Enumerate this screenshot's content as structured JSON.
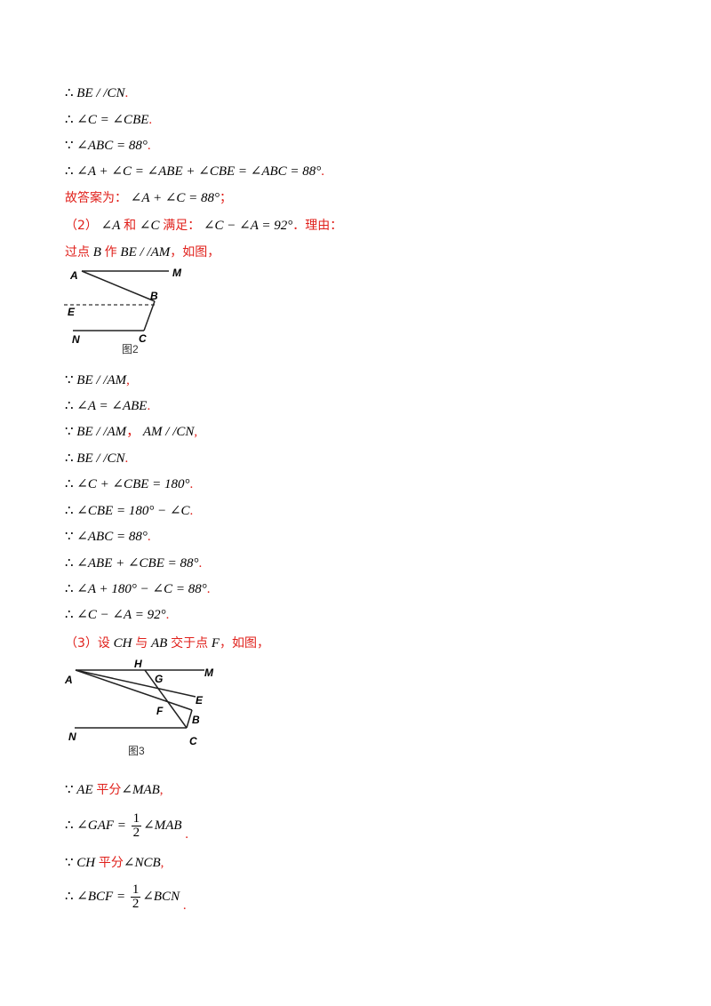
{
  "lines": {
    "l1": {
      "sym": "∴",
      "expr": "BE / /CN",
      "tail": "."
    },
    "l2": {
      "sym": "∴",
      "expr": "∠C = ∠CBE",
      "tail": "."
    },
    "l3": {
      "sym": "∵",
      "expr": "∠ABC = 88°",
      "tail": "."
    },
    "l4": {
      "sym": "∴",
      "expr": "∠A + ∠C = ∠ABE + ∠CBE = ∠ABC = 88°",
      "tail": "."
    },
    "l5": {
      "prefix": "故答案为：",
      "expr": "∠A + ∠C = 88°",
      "tail": "；"
    },
    "l6": {
      "p1": "（2）",
      "e1": "∠A",
      "p2": "和",
      "e2": "∠C",
      "p3": "满足：",
      "e3": "∠C − ∠A = 92°",
      "p4": "．理由："
    },
    "l7": {
      "p1": "过点",
      "e1": "B",
      "p2": "作",
      "e2": "BE / /AM",
      "p3": "，如图，"
    },
    "l8": {
      "sym": "∵",
      "expr": "BE / /AM",
      "tail": ","
    },
    "l9": {
      "sym": "∴",
      "expr": "∠A = ∠ABE",
      "tail": "."
    },
    "l10": {
      "sym": "∵",
      "expr": "BE / /AM",
      "mid": "，",
      "expr2": "AM / /CN",
      "tail": ","
    },
    "l11": {
      "sym": "∴",
      "expr": "BE / /CN",
      "tail": "."
    },
    "l12": {
      "sym": "∴",
      "expr": "∠C + ∠CBE = 180°",
      "tail": "."
    },
    "l13": {
      "sym": "∴",
      "expr": "∠CBE = 180° − ∠C",
      "tail": "."
    },
    "l14": {
      "sym": "∵",
      "expr": "∠ABC = 88°",
      "tail": "."
    },
    "l15": {
      "sym": "∴",
      "expr": "∠ABE + ∠CBE = 88°",
      "tail": "."
    },
    "l16": {
      "sym": "∴",
      "expr": "∠A + 180° − ∠C = 88°",
      "tail": "."
    },
    "l17": {
      "sym": "∴",
      "expr": "∠C − ∠A = 92°",
      "tail": "."
    },
    "l18": {
      "p1": "（3）设",
      "e1": "CH",
      "p2": "与",
      "e2": "AB",
      "p3": "交于点",
      "e3": "F",
      "p4": "，如图，"
    },
    "l19": {
      "sym": "∵",
      "e1": "AE",
      "p1": "平分",
      "e2": "∠MAB",
      "tail": ","
    },
    "l20": {
      "sym": "∴",
      "pre": "∠GAF =",
      "num": "1",
      "den": "2",
      "post": "∠MAB",
      "tail": "."
    },
    "l21": {
      "sym": "∵",
      "e1": "CH",
      "p1": "平分",
      "e2": "∠NCB",
      "tail": ","
    },
    "l22": {
      "sym": "∴",
      "pre": "∠BCF =",
      "num": "1",
      "den": "2",
      "post": "∠BCN",
      "tail": "."
    }
  },
  "figure2": {
    "A": "A",
    "M": "M",
    "B": "B",
    "E": "E",
    "N": "N",
    "C": "C",
    "caption": "图2"
  },
  "figure3": {
    "H": "H",
    "M": "M",
    "A": "A",
    "G": "G",
    "E": "E",
    "F": "F",
    "B": "B",
    "N": "N",
    "C": "C",
    "caption": "图3"
  }
}
